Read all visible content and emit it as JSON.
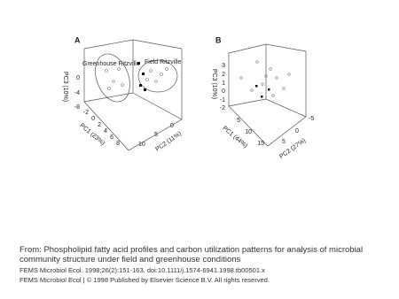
{
  "figure": {
    "panel_a": {
      "label": "A",
      "annotations": [
        "Greenhouse Ritzville",
        "Field Ritzville"
      ],
      "pc3": {
        "title": "PC3 (10%)",
        "ticks": [
          "0",
          "-4",
          "-8"
        ]
      },
      "pc1": {
        "title": "PC1 (23%)",
        "ticks": [
          "-2",
          "0",
          "2",
          "4",
          "6",
          "8"
        ]
      },
      "pc2": {
        "title": "PC2 (11%)",
        "ticks": [
          "10",
          "5",
          "0"
        ]
      }
    },
    "panel_b": {
      "label": "B",
      "pc3": {
        "title": "PC3 (10%)",
        "ticks": [
          "3",
          "2",
          "1",
          "0",
          "-1",
          "-2"
        ]
      },
      "pc1": {
        "title": "PC1 (44%)",
        "ticks": [
          "5",
          "10",
          "15"
        ]
      },
      "pc2": {
        "title": "PC2 (27%)",
        "ticks": [
          "5",
          "0",
          "-5"
        ]
      }
    }
  },
  "caption": {
    "from": "From: Phospholipid fatty acid profiles and carbon utilization patterns for analysis of microbial community structure under field and greenhouse conditions",
    "citation": "FEMS Microbiol Ecol. 1998;26(2):151-163. doi:10.1111/j.1574-6941.1998.tb00501.x",
    "copyright": "FEMS Microbiol Ecol | © 1998 Published by Elsevier Science B.V. All rights reserved."
  }
}
